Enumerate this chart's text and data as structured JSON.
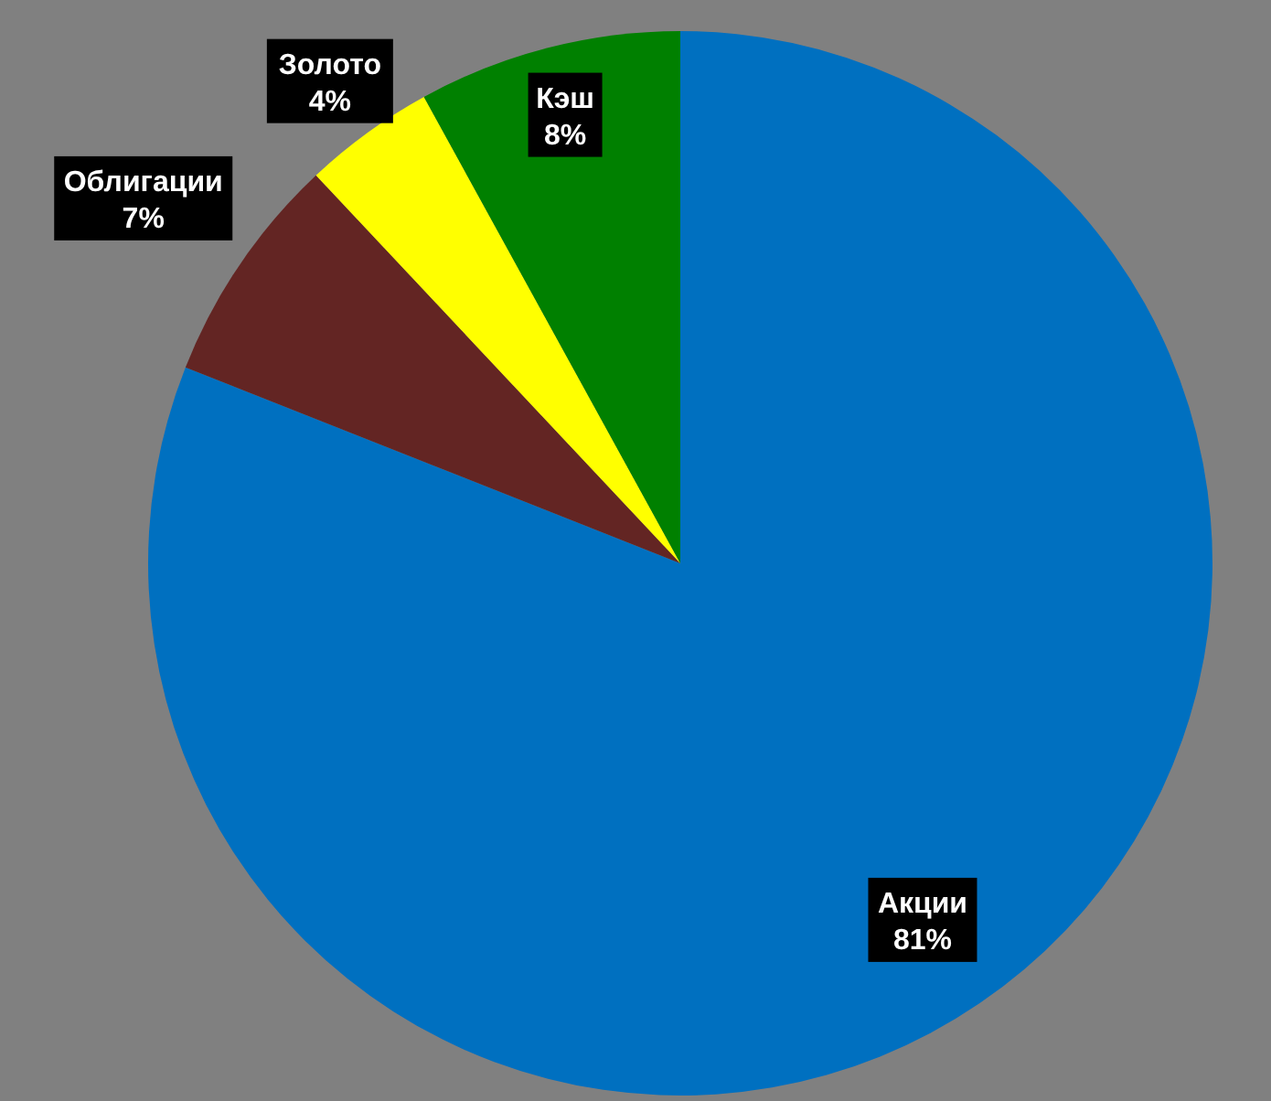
{
  "chart_data": {
    "type": "pie",
    "categories": [
      "Акции",
      "Облигации",
      "Золото",
      "Кэш"
    ],
    "values": [
      81,
      7,
      4,
      8
    ],
    "colors": [
      "#0070c0",
      "#632523",
      "#ffff00",
      "#008000"
    ],
    "value_labels": [
      "81%",
      "7%",
      "4%",
      "8%"
    ]
  }
}
